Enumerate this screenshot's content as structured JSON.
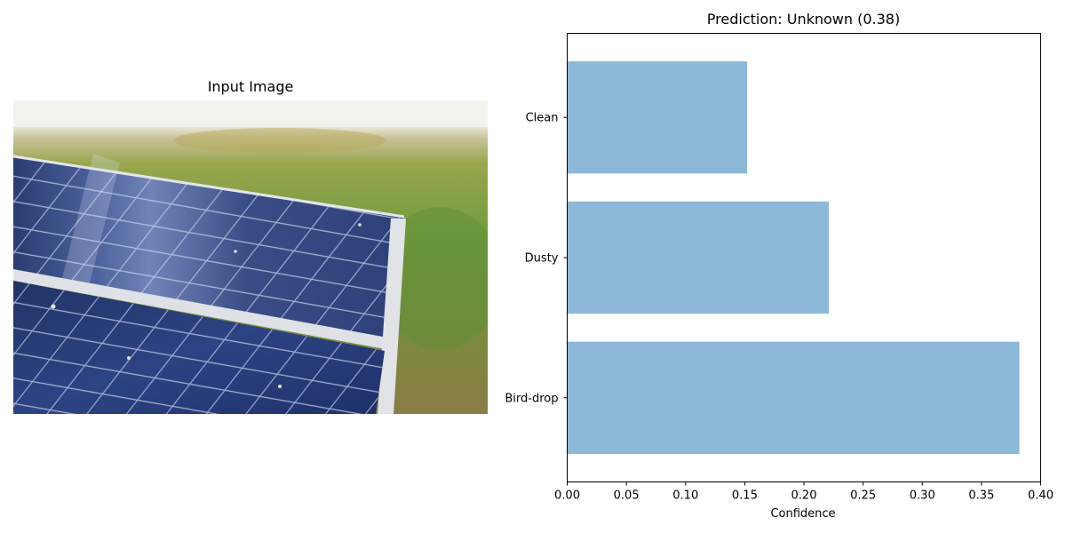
{
  "left_panel": {
    "title": "Input Image",
    "image": "photo of a tilted solar panel in a grassy field"
  },
  "colors": {
    "bar": "#8db8d8"
  },
  "chart_data": {
    "type": "bar",
    "orientation": "horizontal",
    "title": "Prediction: Unknown (0.38)",
    "xlabel": "Confidence",
    "ylabel": "",
    "categories": [
      "Bird-drop",
      "Dusty",
      "Clean"
    ],
    "values": [
      0.382,
      0.221,
      0.152
    ],
    "xlim": [
      0,
      0.4
    ],
    "xticks": [
      "0.00",
      "0.05",
      "0.10",
      "0.15",
      "0.20",
      "0.25",
      "0.30",
      "0.35",
      "0.40"
    ],
    "grid": false,
    "legend": "none"
  }
}
